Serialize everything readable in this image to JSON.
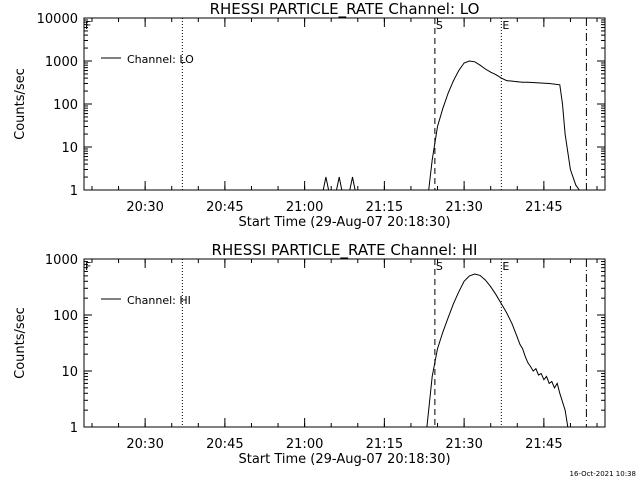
{
  "footer_timestamp": "16-Oct-2021 10:38",
  "chart_data": [
    {
      "type": "line",
      "title": "RHESSI PARTICLE_RATE Channel: LO",
      "xlabel": "Start Time (29-Aug-07 20:18:30)",
      "ylabel": "Counts/sec",
      "yscale": "log",
      "ylim": [
        1,
        10000
      ],
      "xlim": [
        "20:18:30",
        "21:56:30"
      ],
      "y_ticks": [
        "1",
        "10",
        "100",
        "1000",
        "10000"
      ],
      "x_ticks": [
        "20:30",
        "20:45",
        "21:00",
        "21:15",
        "21:30",
        "21:45"
      ],
      "legend": {
        "position": "top-left",
        "entries": [
          "Channel: LO"
        ]
      },
      "series": [
        {
          "name": "Channel: LO",
          "x": [
            "21:03:30",
            "21:04:00",
            "21:04:30",
            "21:06:00",
            "21:06:30",
            "21:07:00",
            "21:08:30",
            "21:09:00",
            "21:09:30",
            "21:23:20",
            "21:24:00",
            "21:25:00",
            "21:26:00",
            "21:27:00",
            "21:28:00",
            "21:29:00",
            "21:30:00",
            "21:31:00",
            "21:32:00",
            "21:33:00",
            "21:34:00",
            "21:35:00",
            "21:36:00",
            "21:37:00",
            "21:38:00",
            "21:39:00",
            "21:40:00",
            "21:41:00",
            "21:42:00",
            "21:44:00",
            "21:46:00",
            "21:48:00",
            "21:48:30",
            "21:49:00",
            "21:50:00",
            "21:51:00",
            "21:51:40"
          ],
          "y": [
            1,
            2,
            1,
            1,
            2,
            1,
            1,
            2,
            1,
            1,
            5,
            30,
            80,
            180,
            350,
            600,
            900,
            1000,
            960,
            800,
            650,
            550,
            480,
            400,
            350,
            340,
            330,
            320,
            320,
            310,
            300,
            280,
            100,
            20,
            3,
            1.3,
            1
          ]
        }
      ],
      "markers": [
        {
          "label": "F",
          "style": "dotted",
          "time": "20:18:30"
        },
        {
          "label": "",
          "style": "dotted",
          "time": "20:37:00"
        },
        {
          "label": "S",
          "style": "dashed",
          "time": "21:24:30"
        },
        {
          "label": "E",
          "style": "dotted",
          "time": "21:37:00"
        },
        {
          "label": "",
          "style": "dash-dot",
          "time": "21:53:00"
        }
      ]
    },
    {
      "type": "line",
      "title": "RHESSI PARTICLE_RATE Channel: HI",
      "xlabel": "Start Time (29-Aug-07 20:18:30)",
      "ylabel": "Counts/sec",
      "yscale": "log",
      "ylim": [
        1,
        1000
      ],
      "xlim": [
        "20:18:30",
        "21:56:30"
      ],
      "y_ticks": [
        "1",
        "10",
        "100",
        "1000"
      ],
      "x_ticks": [
        "20:30",
        "20:45",
        "21:00",
        "21:15",
        "21:30",
        "21:45"
      ],
      "legend": {
        "position": "top-left",
        "entries": [
          "Channel: HI"
        ]
      },
      "series": [
        {
          "name": "Channel: HI",
          "x": [
            "21:23:00",
            "21:24:00",
            "21:25:00",
            "21:26:00",
            "21:27:00",
            "21:28:00",
            "21:29:00",
            "21:30:00",
            "21:31:00",
            "21:32:00",
            "21:33:00",
            "21:34:00",
            "21:35:00",
            "21:36:00",
            "21:37:00",
            "21:38:00",
            "21:39:00",
            "21:40:00",
            "21:40:30",
            "21:41:00",
            "21:41:30",
            "21:42:00",
            "21:42:30",
            "21:43:00",
            "21:43:30",
            "21:44:00",
            "21:44:30",
            "21:45:00",
            "21:45:30",
            "21:46:00",
            "21:46:30",
            "21:47:00",
            "21:47:30",
            "21:48:00",
            "21:49:00",
            "21:49:30"
          ],
          "y": [
            1,
            8,
            25,
            50,
            90,
            160,
            260,
            400,
            500,
            540,
            510,
            420,
            320,
            230,
            160,
            110,
            70,
            40,
            30,
            25,
            18,
            14,
            12,
            10,
            11,
            8.5,
            9,
            7,
            8,
            6,
            6.5,
            5,
            6,
            4,
            2,
            1
          ]
        }
      ],
      "markers": [
        {
          "label": "F",
          "style": "dotted",
          "time": "20:18:30"
        },
        {
          "label": "",
          "style": "dotted",
          "time": "20:37:00"
        },
        {
          "label": "S",
          "style": "dashed",
          "time": "21:24:30"
        },
        {
          "label": "E",
          "style": "dotted",
          "time": "21:37:00"
        },
        {
          "label": "",
          "style": "dash-dot",
          "time": "21:53:00"
        }
      ]
    }
  ]
}
